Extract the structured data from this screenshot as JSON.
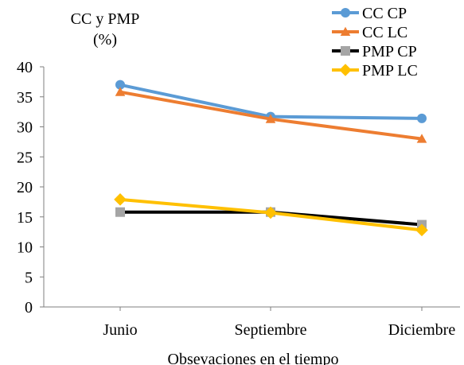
{
  "chart_data": {
    "type": "line",
    "title": "",
    "ylabel": "CC y PMP (%)",
    "ylabel_lines": [
      "CC y PMP",
      "(%)"
    ],
    "xlabel": "Obsevaciones en el tiempo",
    "categories": [
      "Junio",
      "Septiembre",
      "Diciembre"
    ],
    "ylim": [
      0,
      40
    ],
    "yticks": [
      0,
      5,
      10,
      15,
      20,
      25,
      30,
      35,
      40
    ],
    "grid": false,
    "legend_position": "top-right",
    "series": [
      {
        "name": "CC CP",
        "values": [
          37.0,
          31.7,
          31.4
        ],
        "color": "#5B9BD5",
        "marker": "circle"
      },
      {
        "name": "CC LC",
        "values": [
          35.8,
          31.3,
          28.0
        ],
        "color": "#ED7D31",
        "marker": "triangle"
      },
      {
        "name": "PMP CP",
        "values": [
          15.8,
          15.8,
          13.7
        ],
        "color": "#000000",
        "marker_color": "#A5A5A5",
        "marker": "square"
      },
      {
        "name": "PMP LC",
        "values": [
          17.9,
          15.7,
          12.8
        ],
        "color": "#FFC000",
        "marker": "diamond"
      }
    ]
  }
}
